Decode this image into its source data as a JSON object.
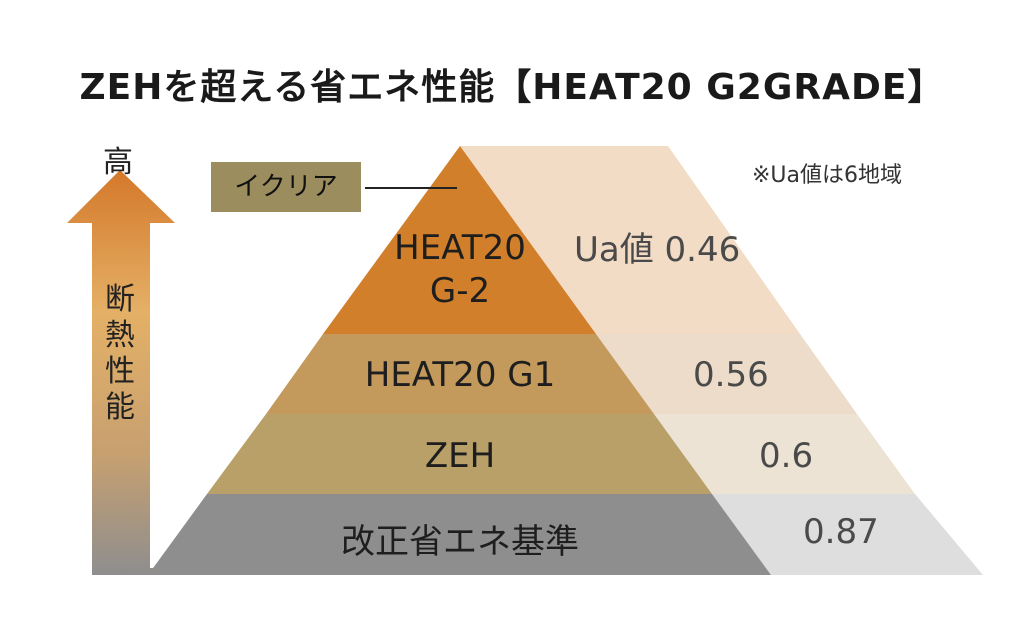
{
  "title": "ZEHを超える省エネ性能【HEAT20 G2GRADE】",
  "note": "※Ua値は6地域",
  "axis": {
    "top_label": "高",
    "side_label": [
      "断",
      "熱",
      "性",
      "能"
    ]
  },
  "product_badge": "イクリア",
  "levels": [
    {
      "name_lines": [
        "HEAT20",
        "G-2"
      ],
      "value": "Ua値 0.46"
    },
    {
      "name_lines": [
        "HEAT20 G1"
      ],
      "value": "0.56"
    },
    {
      "name_lines": [
        "ZEH"
      ],
      "value": "0.6"
    },
    {
      "name_lines": [
        "改正省エネ基準"
      ],
      "value": "0.87"
    }
  ],
  "colors": {
    "tier1": "#d17f2a",
    "tier2": "#c49a5c",
    "tier3": "#b8a068",
    "tier4": "#8e8e8e",
    "arrow_top": "#d4782a",
    "arrow_bottom": "#8e8e8e",
    "badge": "#9c8d5e"
  }
}
